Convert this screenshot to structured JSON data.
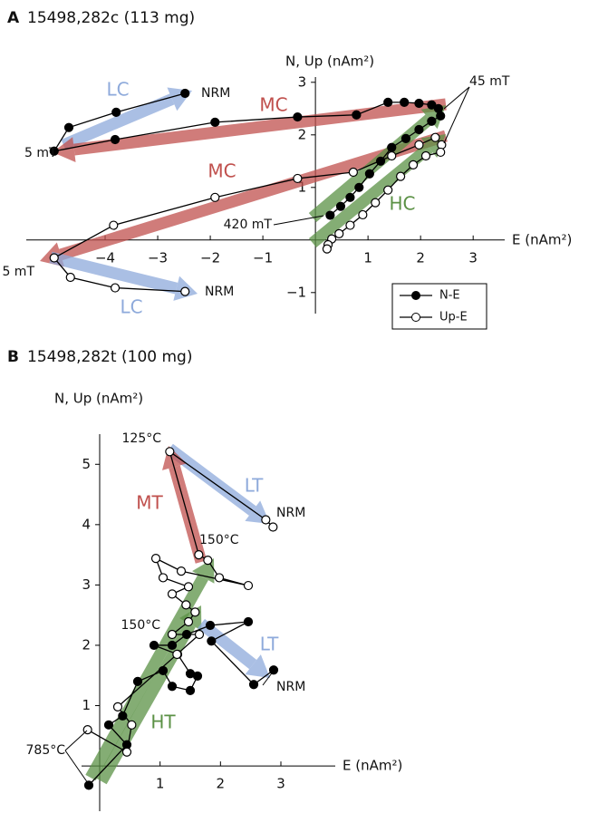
{
  "chart_data": [
    {
      "type": "line",
      "panel": "A",
      "title": "15498,282c (113 mg)",
      "xlabel": "E (nAm²)",
      "ylabel": "N, Up (nAm²)",
      "xlim": [
        -5.5,
        3.6
      ],
      "ylim": [
        -1.4,
        3.1
      ],
      "xticks": [
        {
          "value": -4,
          "label": "−4"
        },
        {
          "value": -3,
          "label": "−3"
        },
        {
          "value": -2,
          "label": "−2"
        },
        {
          "value": -1,
          "label": "−1"
        },
        1,
        2,
        3
      ],
      "yticks": [
        {
          "value": -1,
          "label": "−1"
        },
        1,
        2,
        3
      ],
      "legend": "lower right",
      "series": [
        {
          "name": "N-E",
          "color": "#000000",
          "marker_fill": "#000000",
          "x": [
            -2.48,
            -3.79,
            -4.69,
            -4.97,
            -3.81,
            -1.91,
            -0.34,
            0.78,
            1.38,
            1.69,
            1.97,
            2.21,
            2.34,
            2.38,
            2.21,
            1.97,
            1.72,
            1.45,
            1.24,
            1.03,
            0.83,
            0.66,
            0.48,
            0.28
          ],
          "y": [
            2.79,
            2.43,
            2.14,
            1.69,
            1.91,
            2.24,
            2.34,
            2.38,
            2.62,
            2.62,
            2.6,
            2.57,
            2.5,
            2.36,
            2.26,
            2.1,
            1.93,
            1.76,
            1.5,
            1.26,
            1.0,
            0.81,
            0.64,
            0.47
          ]
        },
        {
          "name": "Up-E",
          "color": "#000000",
          "marker_fill": "#ffffff",
          "x": [
            -2.48,
            -3.81,
            -4.66,
            -4.97,
            -3.84,
            -1.91,
            -0.34,
            0.72,
            1.45,
            1.97,
            2.28,
            2.4,
            2.38,
            2.1,
            1.86,
            1.62,
            1.38,
            1.14,
            0.9,
            0.66,
            0.45,
            0.31,
            0.24,
            0.22
          ],
          "y": [
            -0.98,
            -0.91,
            -0.71,
            -0.34,
            0.28,
            0.81,
            1.17,
            1.29,
            1.6,
            1.81,
            1.95,
            1.81,
            1.67,
            1.6,
            1.43,
            1.21,
            0.95,
            0.71,
            0.48,
            0.28,
            0.12,
            0.02,
            -0.09,
            -0.17
          ]
        }
      ],
      "annotations": [
        {
          "text": "LC",
          "color": "#8eaadb"
        },
        {
          "text": "MC",
          "color": "#c0504d"
        },
        {
          "text": "MC",
          "color": "#c0504d"
        },
        {
          "text": "LC",
          "color": "#8eaadb"
        },
        {
          "text": "HC",
          "color": "#5b9145"
        }
      ],
      "point_labels": [
        "NRM",
        "5 mT",
        "45 mT",
        "420 mT",
        "5 mT",
        "NRM"
      ]
    },
    {
      "type": "line",
      "panel": "B",
      "title": "15498,282t (100 mg)",
      "xlabel": "E (nAm²)",
      "ylabel": "N, Up (nAm²)",
      "xlim": [
        -0.3,
        3.9
      ],
      "ylim": [
        -0.75,
        5.5
      ],
      "xticks": [
        1,
        2,
        3
      ],
      "yticks": [
        1,
        2,
        3,
        4,
        5
      ],
      "series": [
        {
          "name": "N-E",
          "color": "#000000",
          "marker_fill": "#000000",
          "x": [
            2.88,
            2.55,
            1.85,
            2.46,
            1.83,
            1.44,
            1.2,
            0.9,
            1.29,
            1.5,
            1.62,
            1.5,
            1.2,
            1.05,
            0.63,
            0.38,
            0.15,
            0.45,
            -0.18
          ],
          "y": [
            1.59,
            1.35,
            2.07,
            2.39,
            2.33,
            2.18,
            2.0,
            2.0,
            1.85,
            1.53,
            1.49,
            1.25,
            1.32,
            1.58,
            1.4,
            0.83,
            0.68,
            0.35,
            -0.32
          ]
        },
        {
          "name": "Up-E",
          "color": "#000000",
          "marker_fill": "#ffffff",
          "x": [
            2.87,
            2.75,
            1.16,
            1.64,
            1.79,
            1.98,
            2.46,
            1.35,
            0.93,
            1.05,
            1.47,
            1.2,
            1.43,
            1.58,
            1.47,
            1.2,
            1.65,
            1.28,
            0.3,
            0.53,
            0.45,
            -0.2
          ],
          "y": [
            3.96,
            4.08,
            5.21,
            3.5,
            3.41,
            3.12,
            2.99,
            3.23,
            3.44,
            3.12,
            2.97,
            2.85,
            2.67,
            2.55,
            2.39,
            2.18,
            2.18,
            1.85,
            0.98,
            0.68,
            0.23,
            0.6
          ]
        }
      ],
      "annotations": [
        {
          "text": "LT",
          "color": "#8eaadb"
        },
        {
          "text": "MT",
          "color": "#c0504d"
        },
        {
          "text": "HT",
          "color": "#5b9145"
        },
        {
          "text": "LT",
          "color": "#8eaadb"
        }
      ],
      "point_labels": [
        "125°C",
        "NRM",
        "150°C",
        "150°C",
        "NRM",
        "785°C"
      ]
    }
  ]
}
